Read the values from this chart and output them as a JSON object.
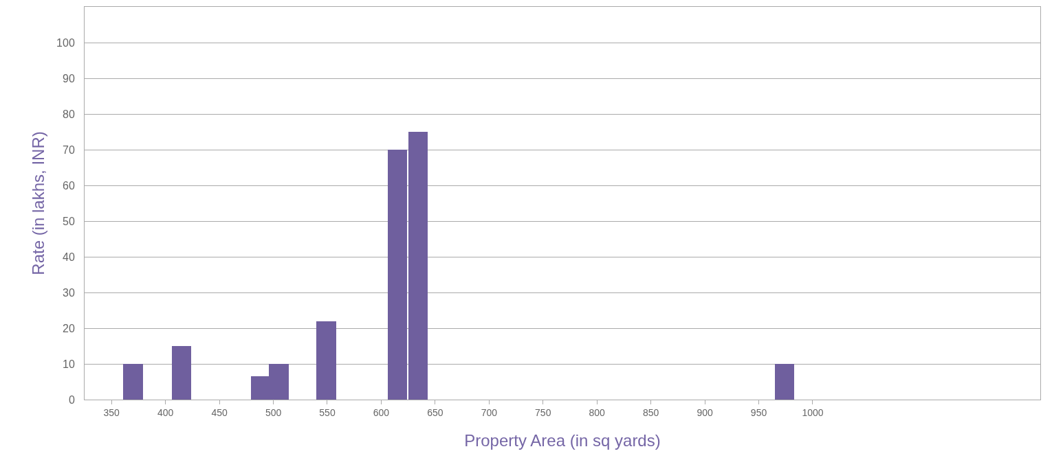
{
  "chart_data": {
    "type": "bar",
    "xlabel": "Property Area (in sq yards)",
    "ylabel": "Rate (in lakhs, INR)",
    "x": [
      370,
      415,
      488,
      505,
      549,
      615,
      634,
      974
    ],
    "values": [
      10,
      15,
      6.5,
      10,
      22,
      70,
      75,
      10
    ],
    "color": "#6f5f9e",
    "xlim": [
      325,
      1211
    ],
    "xticks": [
      350,
      400,
      450,
      500,
      550,
      600,
      650,
      700,
      750,
      800,
      850,
      900,
      950,
      1000
    ],
    "ylim": [
      0,
      110
    ],
    "yticks": [
      0,
      10,
      20,
      30,
      40,
      50,
      60,
      70,
      80,
      90,
      100
    ],
    "grid": "y"
  }
}
